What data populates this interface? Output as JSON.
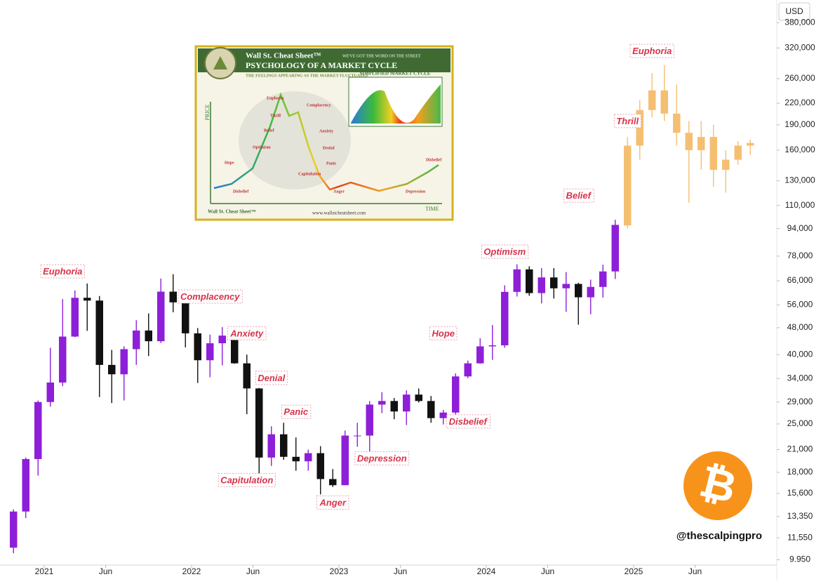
{
  "chart_data": {
    "type": "candlestick",
    "currency": "USD",
    "log_scale": true,
    "xlim": [
      "2020-10",
      "2025-10"
    ],
    "xticks": [
      {
        "value": "2021-01",
        "label": "2021"
      },
      {
        "value": "2021-06",
        "label": "Jun"
      },
      {
        "value": "2022-01",
        "label": "2022"
      },
      {
        "value": "2022-06",
        "label": "Jun"
      },
      {
        "value": "2023-01",
        "label": "2023"
      },
      {
        "value": "2023-06",
        "label": "Jun"
      },
      {
        "value": "2024-01",
        "label": "2024"
      },
      {
        "value": "2024-06",
        "label": "Jun"
      },
      {
        "value": "2025-01",
        "label": "2025"
      },
      {
        "value": "2025-06",
        "label": "Jun"
      }
    ],
    "ylim": [
      9600,
      443000
    ],
    "yticks": [
      {
        "value": 9950,
        "label": "9.950"
      },
      {
        "value": 11550,
        "label": "11,550"
      },
      {
        "value": 13350,
        "label": "13,350"
      },
      {
        "value": 15600,
        "label": "15,600"
      },
      {
        "value": 18000,
        "label": "18,000"
      },
      {
        "value": 21000,
        "label": "21,000"
      },
      {
        "value": 25000,
        "label": "25,000"
      },
      {
        "value": 29000,
        "label": "29,000"
      },
      {
        "value": 34000,
        "label": "34,000"
      },
      {
        "value": 40000,
        "label": "40,000"
      },
      {
        "value": 48000,
        "label": "48,000"
      },
      {
        "value": 56000,
        "label": "56,000"
      },
      {
        "value": 66000,
        "label": "66,000"
      },
      {
        "value": 78000,
        "label": "78,000"
      },
      {
        "value": 94000,
        "label": "94,000"
      },
      {
        "value": 110000,
        "label": "110,000"
      },
      {
        "value": 130000,
        "label": "130,000"
      },
      {
        "value": 160000,
        "label": "160,000"
      },
      {
        "value": 190000,
        "label": "190,000"
      },
      {
        "value": 220000,
        "label": "220,000"
      },
      {
        "value": 260000,
        "label": "260,000"
      },
      {
        "value": 320000,
        "label": "320,000"
      },
      {
        "value": 380000,
        "label": "380,000"
      }
    ],
    "series": [
      {
        "color_up": "#8e1fd8",
        "color_down": "#111111",
        "x": [
          "2020-10",
          "2020-11",
          "2020-12",
          "2021-01",
          "2021-02",
          "2021-03",
          "2021-04",
          "2021-05",
          "2021-06",
          "2021-07",
          "2021-08",
          "2021-09",
          "2021-10",
          "2021-11",
          "2021-12",
          "2022-01",
          "2022-02",
          "2022-03",
          "2022-04",
          "2022-05",
          "2022-06",
          "2022-07",
          "2022-08",
          "2022-09",
          "2022-10",
          "2022-11",
          "2022-12",
          "2023-01",
          "2023-02",
          "2023-03",
          "2023-04",
          "2023-05",
          "2023-06",
          "2023-07",
          "2023-08",
          "2023-09",
          "2023-10",
          "2023-11",
          "2023-12",
          "2024-01",
          "2024-02",
          "2024-03",
          "2024-04",
          "2024-05",
          "2024-06",
          "2024-07",
          "2024-08",
          "2024-09",
          "2024-10",
          "2024-11"
        ],
        "open": [
          10800,
          13800,
          19700,
          29000,
          33100,
          45200,
          58800,
          57700,
          37300,
          35000,
          41500,
          47100,
          43800,
          61300,
          57000,
          46200,
          38500,
          43200,
          45500,
          37700,
          31800,
          19900,
          23300,
          20000,
          19400,
          20500,
          17200,
          16500,
          23100,
          23100,
          28500,
          29200,
          27200,
          30500,
          29200,
          26000,
          27000,
          34500,
          37700,
          42300,
          42600,
          61200,
          71300,
          60700,
          67500,
          62700,
          64600,
          59000,
          63300,
          70300
        ],
        "high": [
          14000,
          19900,
          29300,
          41900,
          58300,
          61800,
          64800,
          59500,
          41300,
          42300,
          50500,
          52900,
          67000,
          69000,
          59100,
          47900,
          45800,
          48200,
          47400,
          40000,
          31900,
          24600,
          25200,
          22800,
          21000,
          21500,
          18400,
          23900,
          25200,
          29200,
          31000,
          29800,
          31400,
          31800,
          30200,
          27500,
          35200,
          38400,
          44700,
          48900,
          64000,
          73800,
          72800,
          71900,
          71900,
          70000,
          65100,
          66500,
          73600,
          99800
        ],
        "low": [
          10400,
          13200,
          17600,
          28100,
          32300,
          45000,
          47000,
          30000,
          28800,
          29300,
          37300,
          39600,
          43300,
          53300,
          42000,
          33000,
          34300,
          37200,
          37600,
          26700,
          17600,
          18800,
          19600,
          18200,
          18200,
          15500,
          16300,
          16500,
          21400,
          19600,
          26900,
          25800,
          24800,
          28900,
          25200,
          24900,
          26600,
          34100,
          37600,
          38600,
          41900,
          59300,
          59600,
          56600,
          58500,
          53500,
          49000,
          52600,
          58900,
          66800
        ],
        "close": [
          13800,
          19700,
          29000,
          33100,
          45200,
          58800,
          57700,
          37300,
          35000,
          41500,
          47100,
          43800,
          61300,
          57000,
          46200,
          38500,
          43200,
          45500,
          37700,
          31800,
          19900,
          23300,
          20000,
          19400,
          20500,
          17200,
          16500,
          23100,
          23100,
          28500,
          29200,
          27200,
          30500,
          29200,
          26000,
          27000,
          34500,
          37700,
          42300,
          42600,
          61200,
          71300,
          60700,
          67500,
          62700,
          64600,
          59000,
          63300,
          70300,
          96400
        ]
      },
      {
        "color": "#f5bf72",
        "x": [
          "2024-12",
          "2025-01",
          "2025-02",
          "2025-03",
          "2025-04",
          "2025-05",
          "2025-06",
          "2025-07",
          "2025-08",
          "2025-09",
          "2025-10"
        ],
        "open": [
          96000,
          165000,
          210000,
          240000,
          205000,
          180000,
          160000,
          175000,
          140000,
          150000,
          165000
        ],
        "high": [
          175000,
          225000,
          270000,
          285000,
          250000,
          195000,
          195000,
          190000,
          160000,
          170000,
          172000
        ],
        "low": [
          94000,
          150000,
          200000,
          195000,
          165000,
          112000,
          140000,
          125000,
          120000,
          145000,
          155000
        ],
        "close": [
          165000,
          210000,
          240000,
          205000,
          180000,
          160000,
          175000,
          140000,
          150000,
          165000,
          168000
        ]
      }
    ],
    "annotations": [
      {
        "text": "Euphoria",
        "x": "2021-02",
        "y": 70000
      },
      {
        "text": "Complacency",
        "x": "2022-02",
        "y": 59000
      },
      {
        "text": "Anxiety",
        "x": "2022-05",
        "y": 46000
      },
      {
        "text": "Denial",
        "x": "2022-07",
        "y": 34000
      },
      {
        "text": "Panic",
        "x": "2022-09",
        "y": 27000
      },
      {
        "text": "Capitulation",
        "x": "2022-05",
        "y": 17000
      },
      {
        "text": "Anger",
        "x": "2022-12",
        "y": 14600
      },
      {
        "text": "Depression",
        "x": "2023-04",
        "y": 19700
      },
      {
        "text": "Disbelief",
        "x": "2023-11",
        "y": 25300
      },
      {
        "text": "Hope",
        "x": "2023-09",
        "y": 46000
      },
      {
        "text": "Optimism",
        "x": "2024-02",
        "y": 80000
      },
      {
        "text": "Belief",
        "x": "2024-08",
        "y": 117000
      },
      {
        "text": "Thrill",
        "x": "2024-12",
        "y": 194000
      },
      {
        "text": "Euphoria",
        "x": "2025-02",
        "y": 312000
      }
    ]
  },
  "inset": {
    "brand": "Wall St. Cheat Sheet™",
    "tagline": "WE'VE GOT THE WORD ON THE STREET",
    "title": "PSYCHOLOGY OF A MARKET CYCLE",
    "subtitle": "THE FEELINGS APPEARING AS THE MARKET FLUCTUATES",
    "box_title": "SIMPLIFIED MARKET CYCLE",
    "price": "PRICE",
    "time": "TIME",
    "url": "www.wallstcheatsheet.com",
    "footer_brand": "Wall St. Cheat Sheet™",
    "stages": [
      "Hope",
      "Optimism",
      "Belief",
      "Thrill",
      "Euphoria",
      "Complacency",
      "Anxiety",
      "Denial",
      "Panic",
      "Capitulation",
      "Anger",
      "Depression",
      "Disbelief",
      "Disbelief"
    ]
  },
  "watermark": "@thescalpingpro",
  "logo_symbol": "₿"
}
